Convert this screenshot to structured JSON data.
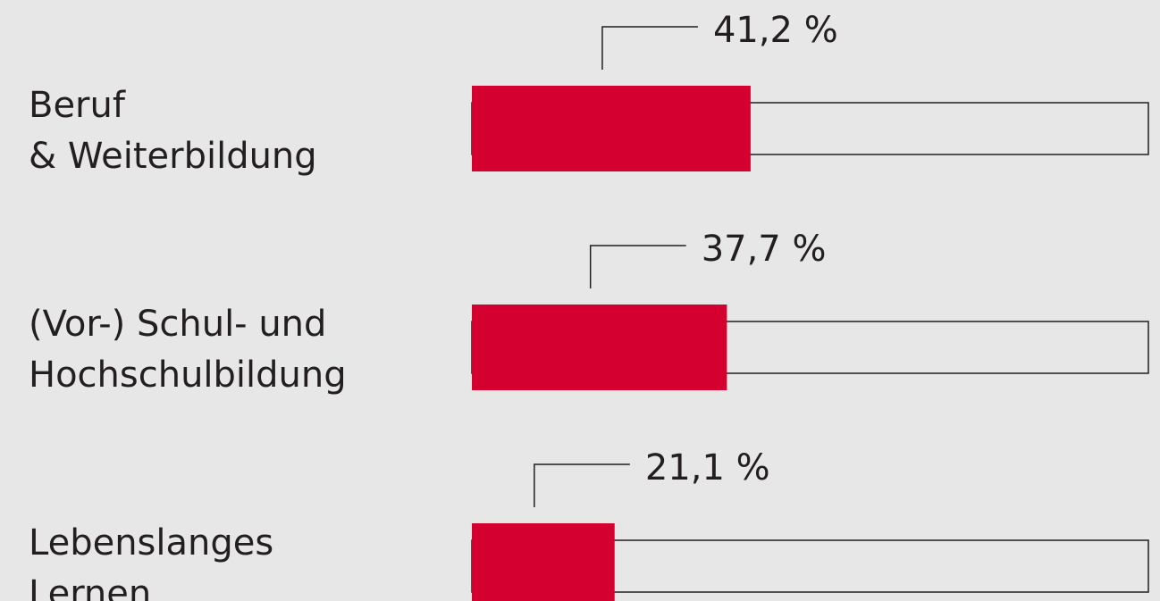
{
  "chart_data": {
    "type": "bar",
    "orientation": "horizontal",
    "categories": [
      [
        "Beruf",
        "& Weiterbildung"
      ],
      [
        "(Vor-) Schul- und",
        "Hochschulbildung"
      ],
      [
        "Lebenslanges",
        "Lernen"
      ]
    ],
    "values": [
      41.2,
      37.7,
      21.1
    ],
    "value_labels": [
      "41,2 %",
      "37,7 %",
      "21,1 %"
    ],
    "color": "#d40030",
    "xlim": [
      0,
      100
    ]
  }
}
